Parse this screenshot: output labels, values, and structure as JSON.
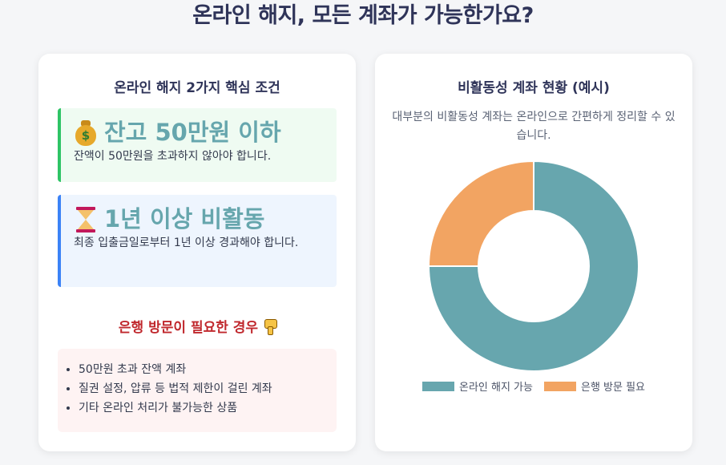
{
  "page": {
    "title": "온라인 해지, 모든 계좌가 가능한가요?"
  },
  "conditions": {
    "heading": "온라인 해지 2가지 핵심 조건",
    "items": [
      {
        "title": "잔고 50만원 이하",
        "desc": "잔액이 50만원을 초과하지 않아야 합니다.",
        "icon": "money-bag-icon"
      },
      {
        "title": "1년 이상 비활동",
        "desc": "최종 입출금일로부터 1년 이상 경과해야 합니다.",
        "icon": "hourglass-icon"
      }
    ]
  },
  "bank_visit": {
    "heading": "은행 방문이 필요한 경우",
    "icon": "thumbs-down-icon",
    "items": [
      "50만원 초과 잔액 계좌",
      "질권 설정, 압류 등 법적 제한이 걸린 계좌",
      "기타 온라인 처리가 불가능한 상품"
    ]
  },
  "chart": {
    "heading": "비활동성 계좌 현황 (예시)",
    "description": "대부분의 비활동성 계좌는 온라인으로 간편하게 정리할 수 있습니다."
  },
  "chart_data": {
    "type": "pie",
    "categories": [
      "온라인 해지 가능",
      "은행 방문 필요"
    ],
    "values": [
      75,
      25
    ],
    "colors": [
      "#67a6ae",
      "#f2a462"
    ],
    "legend": "bottom"
  }
}
